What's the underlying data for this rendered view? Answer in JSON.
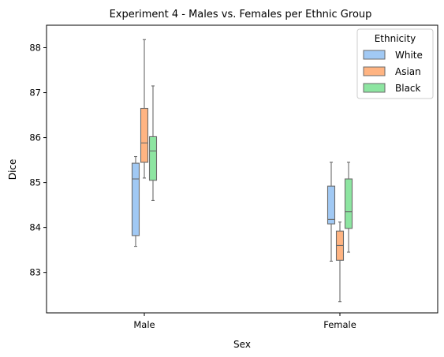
{
  "chart_data": {
    "type": "box",
    "title": "Experiment 4 - Males vs. Females per Ethnic Group",
    "xlabel": "Sex",
    "ylabel": "Dice",
    "categories": [
      "Male",
      "Female"
    ],
    "ylim": [
      82.1,
      88.5
    ],
    "yticks": [
      83,
      84,
      85,
      86,
      87,
      88
    ],
    "grid": false,
    "legend": {
      "title": "Ethnicity",
      "placement": "top-right"
    },
    "series": [
      {
        "name": "White",
        "color": "#a1c9f4",
        "boxes": [
          {
            "whisker_low": 83.58,
            "q1": 83.82,
            "median": 85.08,
            "q3": 85.43,
            "whisker_high": 85.58
          },
          {
            "whisker_low": 83.25,
            "q1": 84.08,
            "median": 84.18,
            "q3": 84.92,
            "whisker_high": 85.45
          }
        ]
      },
      {
        "name": "Asian",
        "color": "#ffb482",
        "boxes": [
          {
            "whisker_low": 85.1,
            "q1": 85.45,
            "median": 85.88,
            "q3": 86.65,
            "whisker_high": 88.18
          },
          {
            "whisker_low": 82.35,
            "q1": 83.27,
            "median": 83.6,
            "q3": 83.92,
            "whisker_high": 84.12
          }
        ]
      },
      {
        "name": "Black",
        "color": "#8de5a1",
        "boxes": [
          {
            "whisker_low": 84.6,
            "q1": 85.05,
            "median": 85.7,
            "q3": 86.02,
            "whisker_high": 87.15
          },
          {
            "whisker_low": 83.45,
            "q1": 83.98,
            "median": 84.35,
            "q3": 85.08,
            "whisker_high": 85.45
          }
        ]
      }
    ]
  }
}
